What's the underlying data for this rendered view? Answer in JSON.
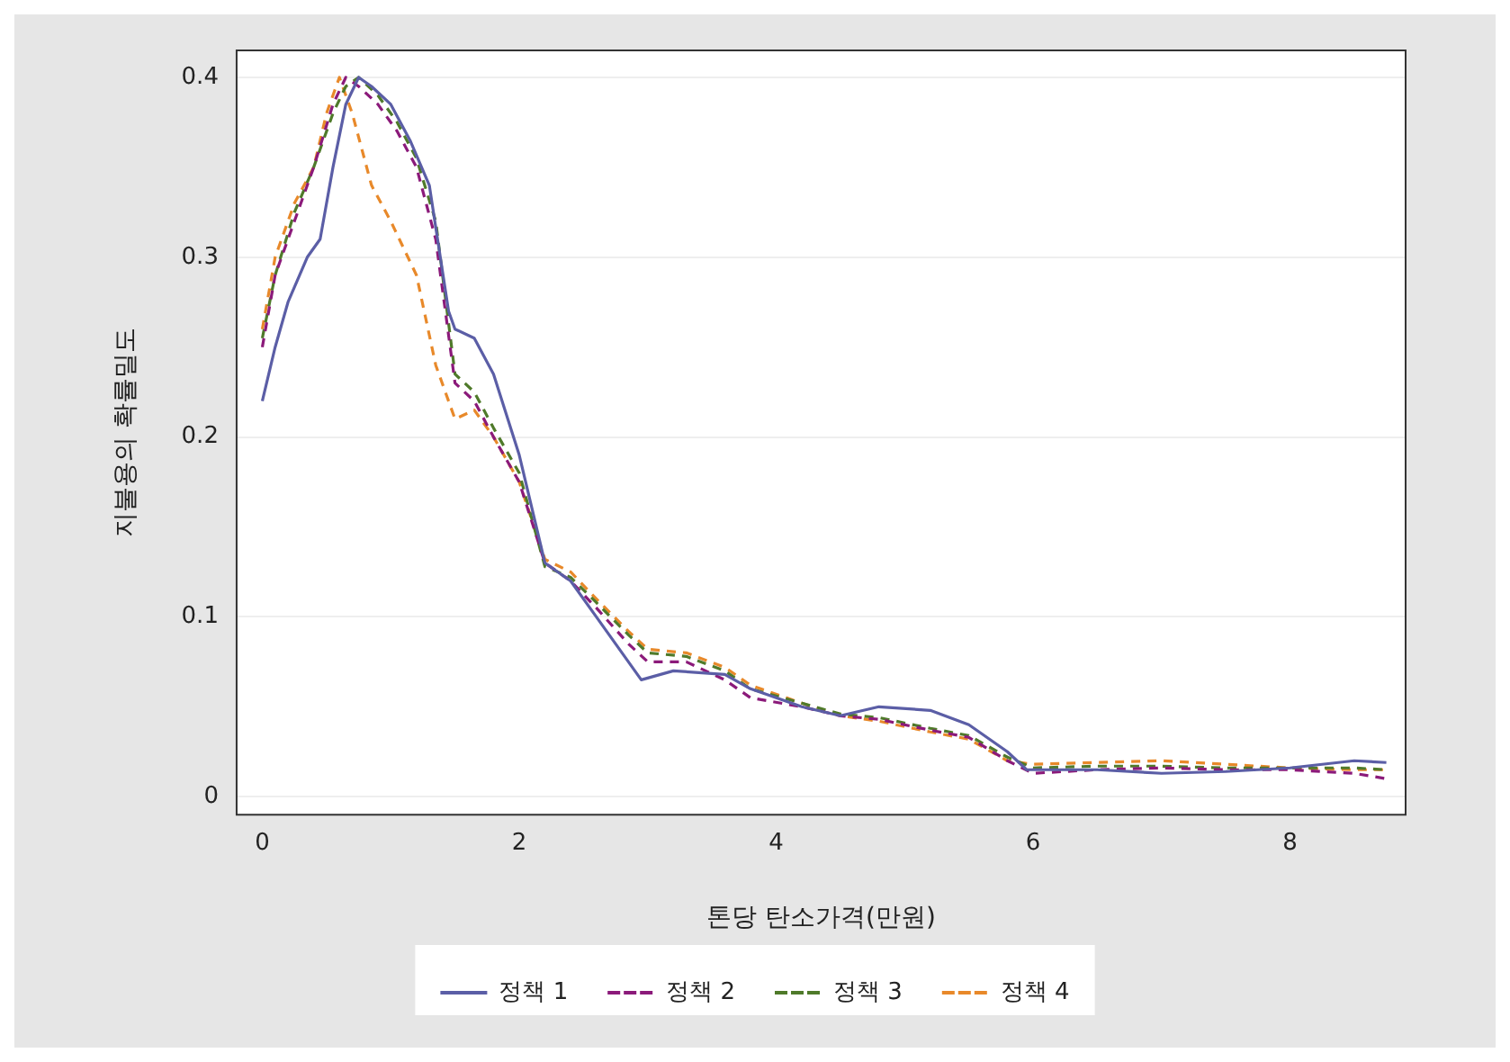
{
  "chart_data": {
    "type": "line",
    "xlabel": "톤당 탄소가격(만원)",
    "ylabel": "지불용의 확률밀도",
    "xlim": [
      -0.2,
      8.9
    ],
    "xticks": [
      0,
      2,
      4,
      6,
      8
    ],
    "ylim": [
      -0.01,
      0.415
    ],
    "yticks": [
      0,
      0.1,
      0.2,
      0.3,
      0.4
    ],
    "grid": "y",
    "legend": "bottom",
    "marker": "none",
    "series": [
      {
        "name": "정책 1",
        "color": "#5b5ea6",
        "line_style": "solid",
        "x": [
          0,
          0.1,
          0.2,
          0.35,
          0.45,
          0.55,
          0.65,
          0.75,
          0.85,
          1.0,
          1.15,
          1.3,
          1.45,
          1.5,
          1.65,
          1.8,
          2.0,
          2.2,
          2.4,
          2.6,
          2.8,
          2.95,
          3.2,
          3.6,
          3.8,
          4.2,
          4.5,
          4.8,
          5.2,
          5.5,
          5.8,
          5.95,
          6.5,
          7.0,
          7.5,
          8.0,
          8.5,
          8.75
        ],
        "values": [
          0.22,
          0.25,
          0.275,
          0.3,
          0.31,
          0.35,
          0.385,
          0.4,
          0.395,
          0.385,
          0.365,
          0.34,
          0.27,
          0.26,
          0.255,
          0.235,
          0.19,
          0.13,
          0.12,
          0.1,
          0.08,
          0.065,
          0.07,
          0.068,
          0.06,
          0.05,
          0.045,
          0.05,
          0.048,
          0.04,
          0.025,
          0.015,
          0.015,
          0.013,
          0.014,
          0.016,
          0.02,
          0.019
        ]
      },
      {
        "name": "정책 2",
        "color": "#8b1a7a",
        "line_style": "dashed",
        "x": [
          0,
          0.1,
          0.25,
          0.4,
          0.55,
          0.65,
          0.75,
          0.9,
          1.05,
          1.2,
          1.35,
          1.5,
          1.65,
          1.8,
          2.0,
          2.2,
          2.4,
          2.6,
          2.85,
          3.0,
          3.3,
          3.6,
          3.8,
          4.2,
          4.5,
          4.8,
          5.2,
          5.5,
          5.8,
          6.0,
          6.5,
          7.0,
          7.5,
          8.0,
          8.5,
          8.75
        ],
        "values": [
          0.25,
          0.29,
          0.32,
          0.35,
          0.385,
          0.4,
          0.395,
          0.385,
          0.37,
          0.35,
          0.31,
          0.23,
          0.22,
          0.2,
          0.175,
          0.13,
          0.12,
          0.105,
          0.085,
          0.075,
          0.075,
          0.065,
          0.055,
          0.05,
          0.045,
          0.043,
          0.037,
          0.033,
          0.02,
          0.013,
          0.015,
          0.016,
          0.015,
          0.015,
          0.013,
          0.01
        ]
      },
      {
        "name": "정책 3",
        "color": "#4f7a2a",
        "line_style": "dashed",
        "x": [
          0,
          0.1,
          0.25,
          0.4,
          0.55,
          0.65,
          0.75,
          0.9,
          1.05,
          1.2,
          1.35,
          1.5,
          1.65,
          1.8,
          2.0,
          2.2,
          2.4,
          2.6,
          2.85,
          3.0,
          3.3,
          3.6,
          3.8,
          4.2,
          4.5,
          4.8,
          5.2,
          5.5,
          5.8,
          6.0,
          6.5,
          7.0,
          7.5,
          8.0,
          8.5,
          8.75
        ],
        "values": [
          0.255,
          0.29,
          0.325,
          0.35,
          0.38,
          0.395,
          0.4,
          0.39,
          0.375,
          0.355,
          0.32,
          0.235,
          0.225,
          0.205,
          0.18,
          0.128,
          0.122,
          0.108,
          0.09,
          0.08,
          0.078,
          0.07,
          0.06,
          0.052,
          0.046,
          0.044,
          0.038,
          0.034,
          0.022,
          0.016,
          0.017,
          0.017,
          0.016,
          0.016,
          0.016,
          0.015
        ]
      },
      {
        "name": "정책 4",
        "color": "#e8892a",
        "line_style": "dashed",
        "x": [
          0,
          0.1,
          0.25,
          0.4,
          0.5,
          0.6,
          0.7,
          0.85,
          1.0,
          1.2,
          1.35,
          1.5,
          1.65,
          1.8,
          2.0,
          2.2,
          2.4,
          2.6,
          2.85,
          3.0,
          3.3,
          3.6,
          3.8,
          4.2,
          4.5,
          4.8,
          5.2,
          5.5,
          5.8,
          6.0,
          6.5,
          7.0,
          7.5,
          8.0,
          8.5,
          8.75
        ],
        "values": [
          0.26,
          0.3,
          0.33,
          0.35,
          0.38,
          0.4,
          0.38,
          0.34,
          0.32,
          0.29,
          0.24,
          0.21,
          0.215,
          0.2,
          0.175,
          0.132,
          0.125,
          0.11,
          0.092,
          0.082,
          0.08,
          0.072,
          0.062,
          0.052,
          0.045,
          0.042,
          0.036,
          0.032,
          0.02,
          0.018,
          0.019,
          0.02,
          0.018,
          0.016,
          0.015,
          0.015
        ]
      }
    ]
  }
}
